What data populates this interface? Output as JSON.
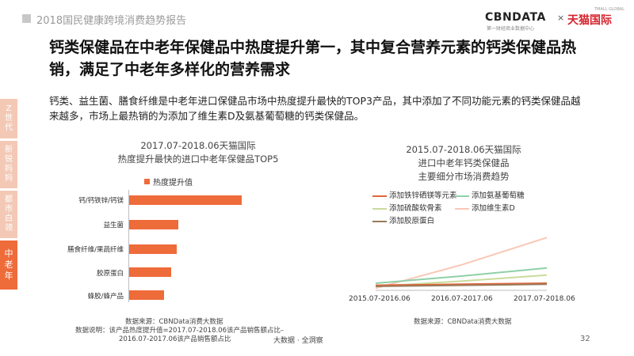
{
  "header": {
    "title": "2018国民健康跨境消费趋势报告"
  },
  "logo": {
    "cbn": "CBNDATA",
    "cbn_sub": "第一财经商业数据中心",
    "x": "×",
    "tmall": "天猫国际",
    "tmall_en": "TMALL GLOBAL"
  },
  "main_title": "钙类保健品在中老年保健品中热度提升第一，其中复合营养元素的钙类保健品热销，满足了中老年多样化的营养需求",
  "description": "钙类、益生菌、膳食纤维是中老年进口保健品市场中热度提升最快的TOP3产品，其中添加了不同功能元素的钙类保健品越来越多，市场上最热销的为添加了维生素D及氨基葡萄糖的钙类保健品。",
  "side_tabs": [
    {
      "label": "Z世代"
    },
    {
      "label": "新锐妈妈"
    },
    {
      "label": "都市白领"
    },
    {
      "label": "中老年",
      "active": true
    }
  ],
  "footer": {
    "text": "大数据 · 全洞察",
    "page": "32"
  },
  "chart_data": [
    {
      "type": "bar",
      "orientation": "horizontal",
      "title_lines": [
        "2017.07-2018.06天猫国际",
        "热度提升最快的进口中老年保健品TOP5"
      ],
      "legend": [
        "热度提升值"
      ],
      "categories": [
        "钙/钙铁锌/钙镁",
        "益生菌",
        "膳食纤维/果蔬纤维",
        "胶原蛋白",
        "蜂胶/蜂产品"
      ],
      "series": [
        {
          "name": "热度提升值",
          "values": [
            1.0,
            0.44,
            0.42,
            0.37,
            0.31
          ]
        }
      ],
      "colors": {
        "bar": "#ee6b3a"
      },
      "notes": [
        "数据来源：CBNData消费大数据",
        "数据说明：该产品热度提升值=2017.07-2018.06该产品销售额占比–",
        "2016.07-2017.06该产品销售额占比"
      ]
    },
    {
      "type": "line",
      "title_lines": [
        "2015.07-2018.06天猫国际",
        "进口中老年钙类保健品",
        "主要细分市场消费趋势"
      ],
      "x": [
        "2015.07-2016.06",
        "2016.07-2017.06",
        "2017.07-2018.06"
      ],
      "series": [
        {
          "name": "添加铁锌硒镁等元素",
          "color": "#e0663c",
          "values": [
            0.05,
            0.06,
            0.07
          ]
        },
        {
          "name": "添加氨基葡萄糖",
          "color": "#8fd0a8",
          "values": [
            0.07,
            0.14,
            0.22
          ]
        },
        {
          "name": "添加硫酸软骨素",
          "color": "#c9dc9c",
          "values": [
            0.04,
            0.09,
            0.15
          ]
        },
        {
          "name": "添加维生素D",
          "color": "#f8c8b6",
          "values": [
            0.02,
            0.25,
            0.52
          ]
        },
        {
          "name": "添加胶原蛋白",
          "color": "#9a7a5a",
          "values": [
            0.04,
            0.05,
            0.06
          ]
        }
      ],
      "ylim": [
        0,
        0.6
      ],
      "source": "数据来源：CBNData消费大数据"
    }
  ]
}
